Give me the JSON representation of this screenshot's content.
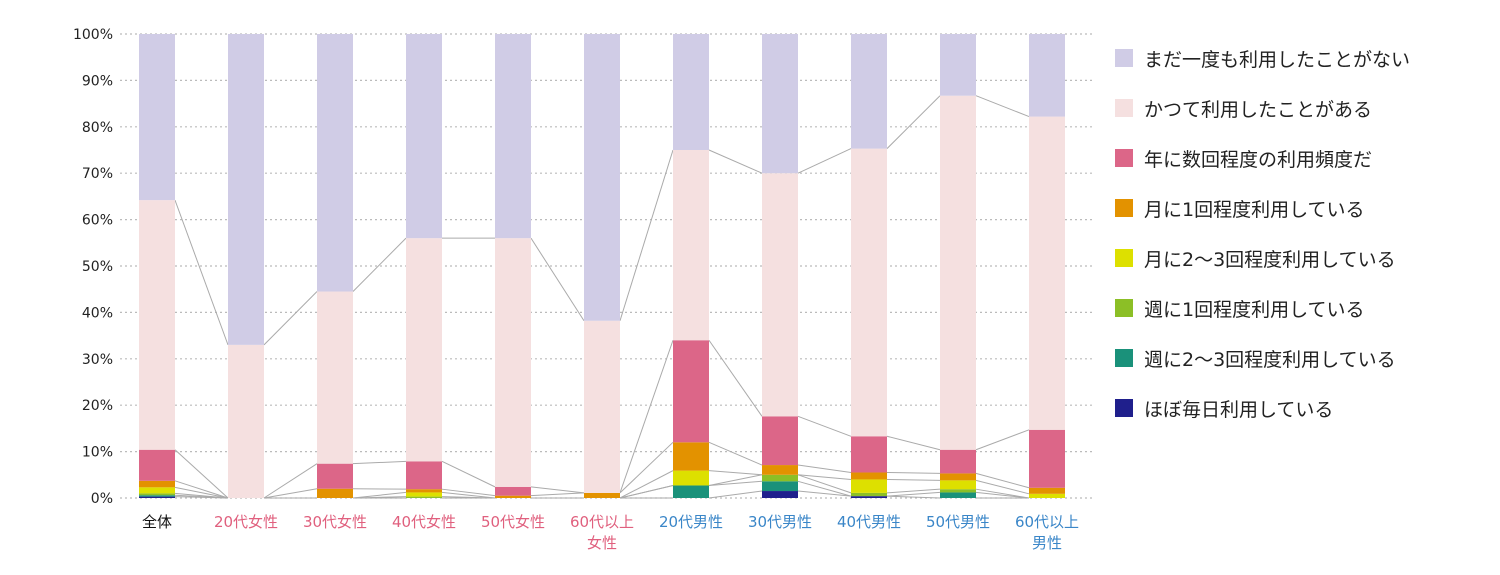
{
  "chart_data": {
    "type": "bar",
    "stacked": true,
    "percent": true,
    "ylim": [
      0,
      100
    ],
    "yticks": [
      "0%",
      "10%",
      "20%",
      "30%",
      "40%",
      "50%",
      "60%",
      "70%",
      "80%",
      "90%",
      "100%"
    ],
    "grid": true,
    "legend_position": "right",
    "categories": [
      {
        "label": "全体",
        "color": "#111111"
      },
      {
        "label": "20代女性",
        "color": "#e0607e"
      },
      {
        "label": "30代女性",
        "color": "#e0607e"
      },
      {
        "label": "40代女性",
        "color": "#e0607e"
      },
      {
        "label": "50代女性",
        "color": "#e0607e"
      },
      {
        "label": "60代以上\n女性",
        "color": "#e0607e"
      },
      {
        "label": "20代男性",
        "color": "#3a86c8"
      },
      {
        "label": "30代男性",
        "color": "#3a86c8"
      },
      {
        "label": "40代男性",
        "color": "#3a86c8"
      },
      {
        "label": "50代男性",
        "color": "#3a86c8"
      },
      {
        "label": "60代以上\n男性",
        "color": "#3a86c8"
      }
    ],
    "series": [
      {
        "name": "ほぼ毎日利用している",
        "color": "#1f1f8c",
        "values": [
          0.3,
          0,
          0,
          0,
          0,
          0,
          0,
          1.5,
          0.4,
          0,
          0
        ]
      },
      {
        "name": "週に2〜3回程度利用している",
        "color": "#1a917a",
        "values": [
          0.3,
          0,
          0,
          0,
          0,
          0,
          2.7,
          2.1,
          0,
          1.2,
          0
        ]
      },
      {
        "name": "週に1回程度利用している",
        "color": "#8cbf26",
        "values": [
          0.4,
          0,
          0,
          0.3,
          0,
          0,
          0,
          1.4,
          0.7,
          0.7,
          0
        ]
      },
      {
        "name": "月に2〜3回程度利用している",
        "color": "#dde000",
        "values": [
          1.3,
          0,
          0,
          0.9,
          0,
          0,
          3.2,
          0,
          2.9,
          1.9,
          0.9
        ]
      },
      {
        "name": "月に1回程度利用している",
        "color": "#e39200",
        "values": [
          1.4,
          0,
          2.0,
          0.7,
          0.5,
          1.1,
          6.1,
          2.1,
          1.5,
          1.5,
          1.3
        ]
      },
      {
        "name": "年に数回程度の利用頻度だ",
        "color": "#dc6688",
        "values": [
          6.7,
          0,
          5.4,
          6.0,
          1.9,
          0,
          22.0,
          10.5,
          7.8,
          5.1,
          12.5
        ]
      },
      {
        "name": "かつて利用したことがある",
        "color": "#f5e0e0",
        "values": [
          53.8,
          33.0,
          37.1,
          48.1,
          53.6,
          37.1,
          41.0,
          52.4,
          62.0,
          76.3,
          67.5
        ]
      },
      {
        "name": "まだ一度も利用したことがない",
        "color": "#d0cce6",
        "values": [
          35.8,
          67.0,
          55.5,
          44.0,
          44.0,
          61.8,
          25.0,
          30.0,
          24.7,
          13.3,
          17.8
        ]
      }
    ]
  }
}
